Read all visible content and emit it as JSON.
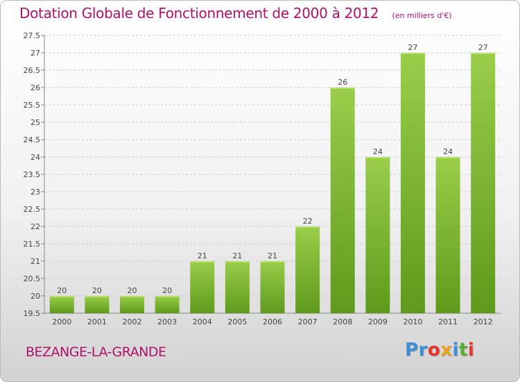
{
  "header": {
    "title": "Dotation Globale de Fonctionnement de 2000 à 2012",
    "unit": "(en milliers d'€)"
  },
  "footer": {
    "commune": "BEZANGE-LA-GRANDE",
    "logo": "Proxiti"
  },
  "colors": {
    "title": "#b0106a",
    "bar_light": "#9acd4a",
    "bar_dark": "#5f9a1c",
    "logo_letters": [
      "#3d8fd6",
      "#3d8fd6",
      "#e8342b",
      "#f0a020",
      "#3d8fd6",
      "#58b030",
      "#e8342b"
    ]
  },
  "chart_data": {
    "type": "bar",
    "title": "Dotation Globale de Fonctionnement de 2000 à 2012",
    "categories": [
      "2000",
      "2001",
      "2002",
      "2003",
      "2004",
      "2005",
      "2006",
      "2007",
      "2008",
      "2009",
      "2010",
      "2011",
      "2012"
    ],
    "values": [
      20,
      20,
      20,
      20,
      21,
      21,
      21,
      22,
      26,
      24,
      27,
      24,
      27
    ],
    "data_labels": [
      "20",
      "20",
      "20",
      "20",
      "21",
      "21",
      "21",
      "22",
      "26",
      "24",
      "27",
      "24",
      "27"
    ],
    "ylim": [
      19.5,
      27.5
    ],
    "yticks": [
      19.5,
      20,
      20.5,
      21,
      21.5,
      22,
      22.5,
      23,
      23.5,
      24,
      24.5,
      25,
      25.5,
      26,
      26.5,
      27,
      27.5
    ],
    "ytick_labels": [
      "19.5",
      "20",
      "20.5",
      "21",
      "21.5",
      "22",
      "22.5",
      "23",
      "23.5",
      "24",
      "24.5",
      "25",
      "25.5",
      "26",
      "26.5",
      "27",
      "27.5"
    ],
    "grid": "dashed horizontal"
  }
}
